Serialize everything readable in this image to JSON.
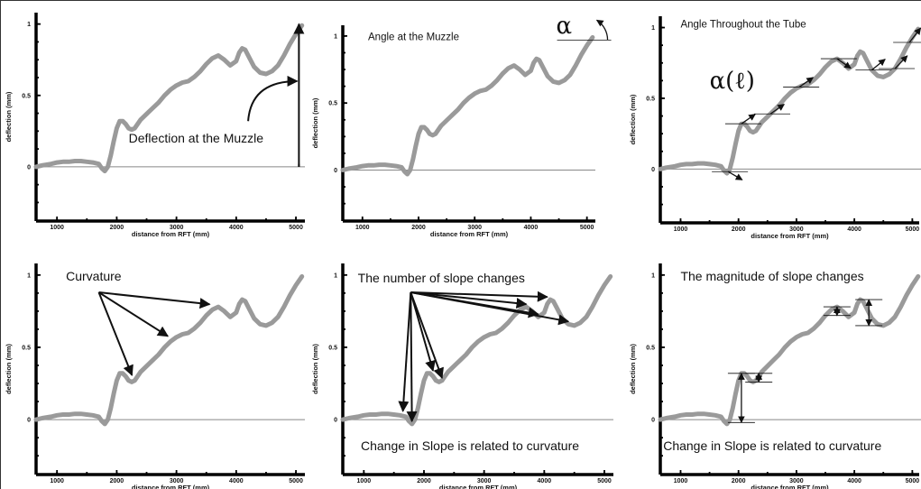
{
  "chart_data": [
    {
      "type": "line",
      "xlabel": "distance from RFT (mm)",
      "ylabel": "deflection (mm)",
      "xticks": [
        "1000",
        "2000",
        "3000",
        "4000",
        "5000"
      ],
      "yticks": [
        "0",
        "0.5",
        "1"
      ],
      "xlim": [
        650,
        5150
      ],
      "ylim": [
        -0.38,
        1.08
      ],
      "series": [
        {
          "values": []
        }
      ],
      "annotations": [
        "Deflection at the Muzzle"
      ]
    },
    {
      "type": "line",
      "xlabel": "distance from RFT (mm)",
      "ylabel": "deflection (mm)",
      "xticks": [
        "1000",
        "2000",
        "3000",
        "4000",
        "5000"
      ],
      "yticks": [
        "0",
        "0.5",
        "1"
      ],
      "xlim": [
        650,
        5150
      ],
      "ylim": [
        -0.38,
        1.08
      ],
      "series": [
        {
          "values": []
        }
      ],
      "annotations": [
        "Angle at the Muzzle",
        "α"
      ]
    },
    {
      "type": "line",
      "xlabel": "distance from RFT (mm)",
      "ylabel": "deflection (mm)",
      "xticks": [
        "1000",
        "2000",
        "3000",
        "4000",
        "5000"
      ],
      "yticks": [
        "0",
        "0.5",
        "1"
      ],
      "xlim": [
        650,
        5150
      ],
      "ylim": [
        -0.38,
        1.08
      ],
      "series": [
        {
          "values": []
        }
      ],
      "annotations": [
        "Angle Throughout the Tube",
        "α(ℓ)"
      ]
    },
    {
      "type": "line",
      "xlabel": "distance from RFT (mm)",
      "ylabel": "deflection (mm)",
      "xticks": [
        "1000",
        "2000",
        "3000",
        "4000",
        "5000"
      ],
      "yticks": [
        "0",
        "0.5",
        "1"
      ],
      "xlim": [
        650,
        5150
      ],
      "ylim": [
        -0.38,
        1.08
      ],
      "series": [
        {
          "values": []
        }
      ],
      "annotations": [
        "Curvature"
      ]
    },
    {
      "type": "line",
      "xlabel": "distance from RFT (mm)",
      "ylabel": "deflection (mm)",
      "xticks": [
        "1000",
        "2000",
        "3000",
        "4000",
        "5000"
      ],
      "yticks": [
        "0",
        "0.5",
        "1"
      ],
      "xlim": [
        650,
        5150
      ],
      "ylim": [
        -0.38,
        1.08
      ],
      "series": [
        {
          "values": []
        }
      ],
      "annotations": [
        "The number of slope changes",
        "Change in Slope is related to curvature"
      ]
    },
    {
      "type": "line",
      "xlabel": "distance from RFT (mm)",
      "ylabel": "deflection (mm)",
      "xticks": [
        "1000",
        "2000",
        "3000",
        "4000",
        "5000"
      ],
      "yticks": [
        "0",
        "0.5",
        "1"
      ],
      "xlim": [
        650,
        5150
      ],
      "ylim": [
        -0.38,
        1.08
      ],
      "series": [
        {
          "values": []
        }
      ],
      "annotations": [
        "The magnitude of slope changes",
        "Change in Slope is related to curvature"
      ]
    }
  ],
  "curve": {
    "x": [
      650,
      750,
      900,
      1000,
      1100,
      1200,
      1300,
      1400,
      1500,
      1600,
      1700,
      1750,
      1800,
      1850,
      1900,
      1950,
      2000,
      2050,
      2100,
      2150,
      2200,
      2250,
      2300,
      2350,
      2400,
      2500,
      2600,
      2700,
      2800,
      2900,
      3000,
      3100,
      3200,
      3300,
      3400,
      3500,
      3600,
      3700,
      3800,
      3900,
      4000,
      4050,
      4100,
      4150,
      4200,
      4300,
      4400,
      4500,
      4600,
      4700,
      4800,
      4900,
      5000,
      5100
    ],
    "y": [
      0.0,
      0.01,
      0.02,
      0.03,
      0.035,
      0.035,
      0.04,
      0.04,
      0.035,
      0.03,
      0.02,
      -0.01,
      -0.03,
      0.0,
      0.08,
      0.18,
      0.27,
      0.32,
      0.32,
      0.3,
      0.27,
      0.26,
      0.27,
      0.3,
      0.33,
      0.37,
      0.41,
      0.45,
      0.5,
      0.54,
      0.57,
      0.59,
      0.6,
      0.63,
      0.67,
      0.72,
      0.76,
      0.78,
      0.75,
      0.71,
      0.74,
      0.8,
      0.83,
      0.82,
      0.78,
      0.7,
      0.66,
      0.65,
      0.67,
      0.71,
      0.78,
      0.86,
      0.93,
      0.99
    ]
  },
  "colors": {
    "curve": "#9a9a9a",
    "axis": "#000000",
    "zero_line": "#888888"
  }
}
